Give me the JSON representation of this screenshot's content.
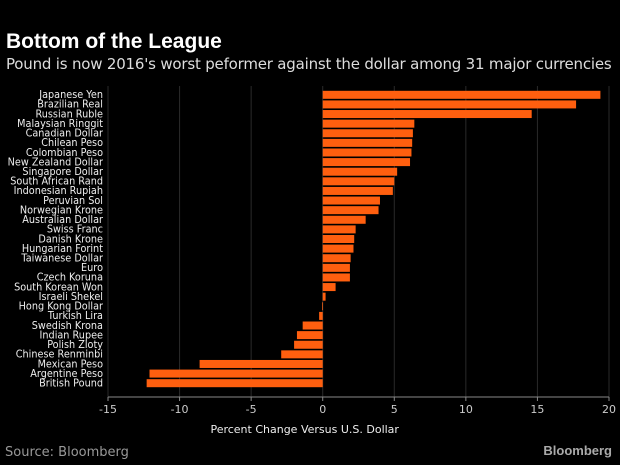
{
  "title": "Bottom of the League",
  "subtitle": "Pound is now 2016's worst peformer against the dollar among 31 major currencies",
  "source": "Source: Bloomberg",
  "brand": "Bloomberg",
  "chart_data": {
    "type": "bar",
    "orientation": "horizontal",
    "xlabel": "Percent Change Versus U.S. Dollar",
    "xlim": [
      -15,
      20
    ],
    "xticks": [
      -15,
      -10,
      -5,
      0,
      5,
      10,
      15,
      20
    ],
    "grid": true,
    "bar_color": "#ff5f0f",
    "categories": [
      "Japanese Yen",
      "Brazilian Real",
      "Russian Ruble",
      "Malaysian Ringgit",
      "Canadian Dollar",
      "Chilean Peso",
      "Colombian Peso",
      "New Zealand Dollar",
      "Singapore Dollar",
      "South African Rand",
      "Indonesian Rupiah",
      "Peruvian Sol",
      "Norwegian Krone",
      "Australian Dollar",
      "Swiss Franc",
      "Danish Krone",
      "Hungarian Forint",
      "Taiwanese Dollar",
      "Euro",
      "Czech Koruna",
      "South Korean Won",
      "Israeli Shekel",
      "Hong Kong Dollar",
      "Turkish Lira",
      "Swedish Krona",
      "Indian Rupee",
      "Polish Zloty",
      "Chinese Renminbi",
      "Mexican Peso",
      "Argentine Peso",
      "British Pound"
    ],
    "values": [
      19.4,
      17.7,
      14.6,
      6.4,
      6.3,
      6.25,
      6.2,
      6.1,
      5.2,
      5.0,
      4.9,
      4.0,
      3.9,
      3.0,
      2.3,
      2.2,
      2.15,
      1.95,
      1.9,
      1.9,
      0.9,
      0.2,
      -0.05,
      -0.25,
      -1.4,
      -1.8,
      -2.0,
      -2.9,
      -8.6,
      -12.1,
      -12.3
    ]
  }
}
